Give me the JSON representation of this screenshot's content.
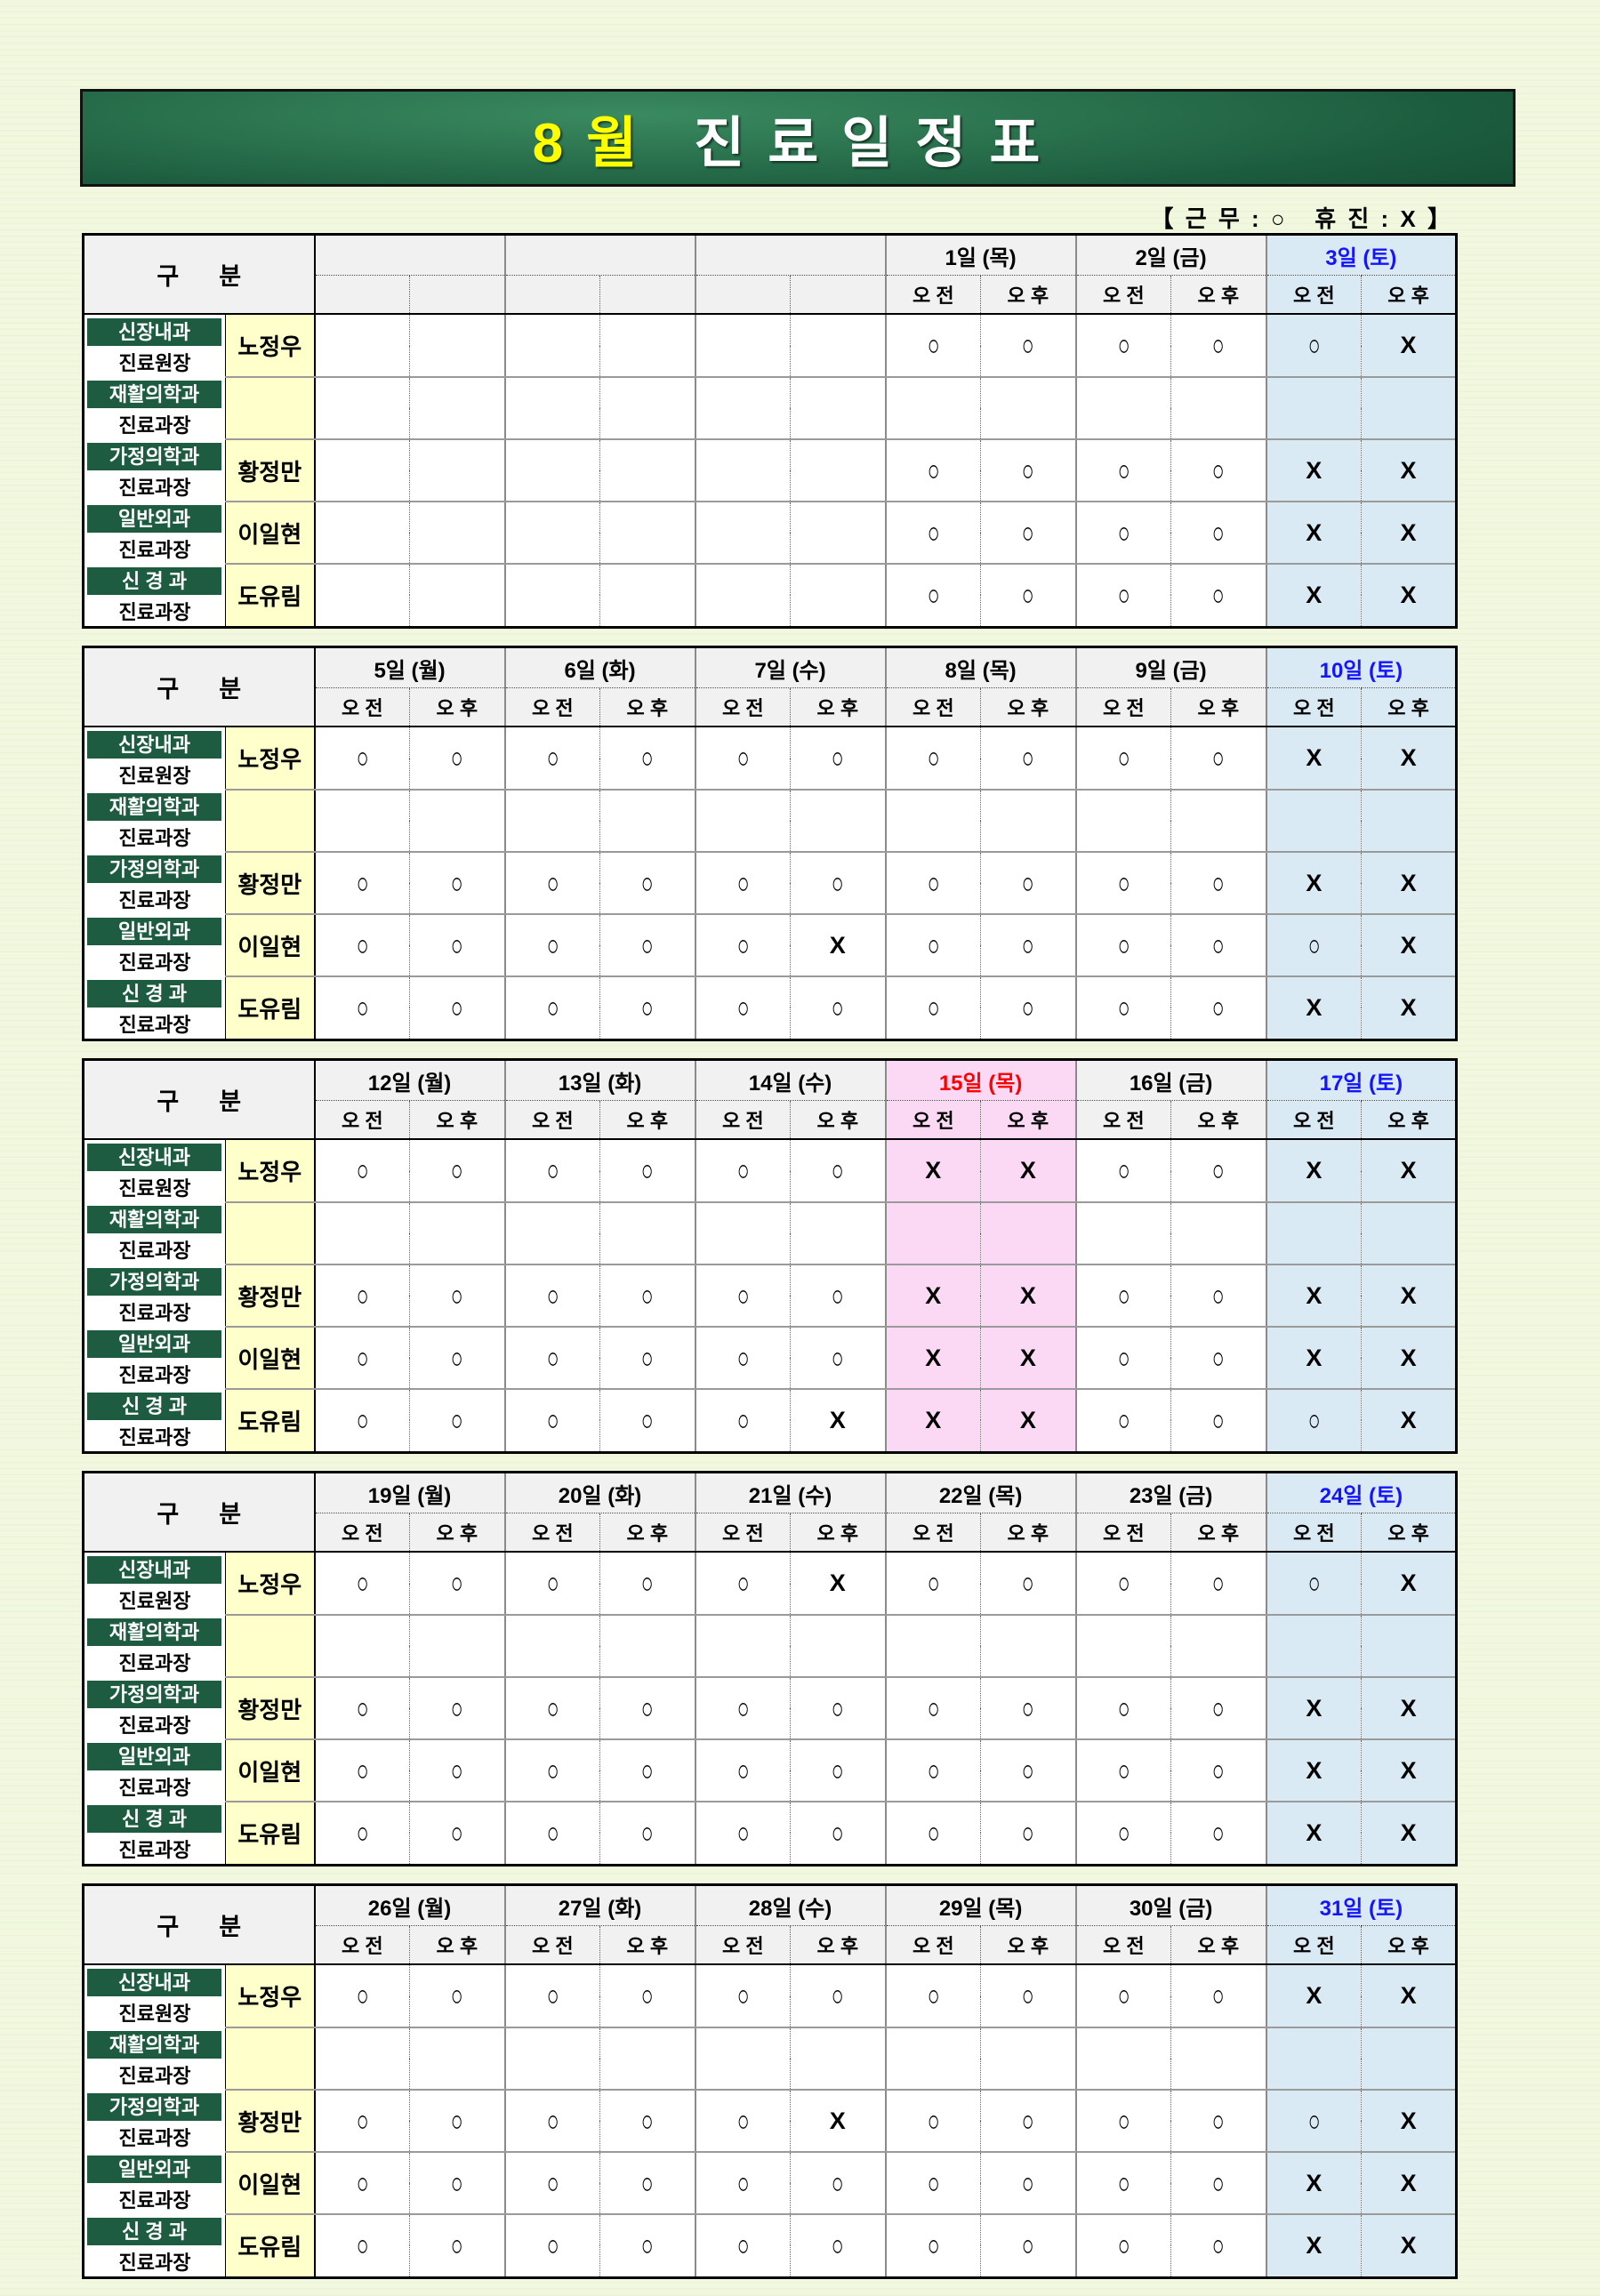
{
  "banner": {
    "month": "8월",
    "title": "진료일정표"
  },
  "legend": {
    "text": "【 근 무 : ○   휴 진 : X 】"
  },
  "labels": {
    "corner": "구      분",
    "am": "오 전",
    "pm": "오 후"
  },
  "colors": {
    "banner_green_dark": "#0a3323",
    "banner_green_light": "#3a8a60",
    "banner_month_yellow": "#ffff00",
    "dept_green": "#1d5c40",
    "name_yellow": "#ffffcc",
    "header_gray": "#f1f1f1",
    "saturday_bg": "#d9eaf4",
    "saturday_text": "#1414ff",
    "holiday_bg": "#fbd9f4",
    "holiday_text": "#ff0000",
    "mark_work": "○",
    "mark_off": "X"
  },
  "doctors": [
    {
      "dept": "신장내과",
      "title": "진료원장",
      "name": "노정우"
    },
    {
      "dept": "재활의학과",
      "title": "진료과장",
      "name": ""
    },
    {
      "dept": "가정의학과",
      "title": "진료과장",
      "name": "황정만"
    },
    {
      "dept": "일반외과",
      "title": "진료과장",
      "name": "이일현"
    },
    {
      "dept": "신 경 과",
      "title": "진료과장",
      "name": "도유림"
    }
  ],
  "weeks": [
    {
      "days": [
        {
          "label": "",
          "type": "blank"
        },
        {
          "label": "",
          "type": "blank"
        },
        {
          "label": "",
          "type": "blank"
        },
        {
          "label": "1일 (목)",
          "type": "normal"
        },
        {
          "label": "2일 (금)",
          "type": "normal"
        },
        {
          "label": "3일 (토)",
          "type": "saturday"
        }
      ],
      "marks": [
        [
          "",
          "",
          "",
          "",
          "",
          "",
          "○",
          "○",
          "○",
          "○",
          "○",
          "X"
        ],
        [
          "",
          "",
          "",
          "",
          "",
          "",
          "",
          "",
          "",
          "",
          "",
          ""
        ],
        [
          "",
          "",
          "",
          "",
          "",
          "",
          "○",
          "○",
          "○",
          "○",
          "X",
          "X"
        ],
        [
          "",
          "",
          "",
          "",
          "",
          "",
          "○",
          "○",
          "○",
          "○",
          "X",
          "X"
        ],
        [
          "",
          "",
          "",
          "",
          "",
          "",
          "○",
          "○",
          "○",
          "○",
          "X",
          "X"
        ]
      ]
    },
    {
      "days": [
        {
          "label": "5일 (월)",
          "type": "normal"
        },
        {
          "label": "6일 (화)",
          "type": "normal"
        },
        {
          "label": "7일 (수)",
          "type": "normal"
        },
        {
          "label": "8일 (목)",
          "type": "normal"
        },
        {
          "label": "9일 (금)",
          "type": "normal"
        },
        {
          "label": "10일 (토)",
          "type": "saturday"
        }
      ],
      "marks": [
        [
          "○",
          "○",
          "○",
          "○",
          "○",
          "○",
          "○",
          "○",
          "○",
          "○",
          "X",
          "X"
        ],
        [
          "",
          "",
          "",
          "",
          "",
          "",
          "",
          "",
          "",
          "",
          "",
          ""
        ],
        [
          "○",
          "○",
          "○",
          "○",
          "○",
          "○",
          "○",
          "○",
          "○",
          "○",
          "X",
          "X"
        ],
        [
          "○",
          "○",
          "○",
          "○",
          "○",
          "X",
          "○",
          "○",
          "○",
          "○",
          "○",
          "X"
        ],
        [
          "○",
          "○",
          "○",
          "○",
          "○",
          "○",
          "○",
          "○",
          "○",
          "○",
          "X",
          "X"
        ]
      ]
    },
    {
      "days": [
        {
          "label": "12일 (월)",
          "type": "normal"
        },
        {
          "label": "13일 (화)",
          "type": "normal"
        },
        {
          "label": "14일 (수)",
          "type": "normal"
        },
        {
          "label": "15일 (목)",
          "type": "holiday"
        },
        {
          "label": "16일 (금)",
          "type": "normal"
        },
        {
          "label": "17일 (토)",
          "type": "saturday"
        }
      ],
      "marks": [
        [
          "○",
          "○",
          "○",
          "○",
          "○",
          "○",
          "X",
          "X",
          "○",
          "○",
          "X",
          "X"
        ],
        [
          "",
          "",
          "",
          "",
          "",
          "",
          "",
          "",
          "",
          "",
          "",
          ""
        ],
        [
          "○",
          "○",
          "○",
          "○",
          "○",
          "○",
          "X",
          "X",
          "○",
          "○",
          "X",
          "X"
        ],
        [
          "○",
          "○",
          "○",
          "○",
          "○",
          "○",
          "X",
          "X",
          "○",
          "○",
          "X",
          "X"
        ],
        [
          "○",
          "○",
          "○",
          "○",
          "○",
          "X",
          "X",
          "X",
          "○",
          "○",
          "○",
          "X"
        ]
      ]
    },
    {
      "days": [
        {
          "label": "19일 (월)",
          "type": "normal"
        },
        {
          "label": "20일 (화)",
          "type": "normal"
        },
        {
          "label": "21일 (수)",
          "type": "normal"
        },
        {
          "label": "22일 (목)",
          "type": "normal"
        },
        {
          "label": "23일 (금)",
          "type": "normal"
        },
        {
          "label": "24일 (토)",
          "type": "saturday"
        }
      ],
      "marks": [
        [
          "○",
          "○",
          "○",
          "○",
          "○",
          "X",
          "○",
          "○",
          "○",
          "○",
          "○",
          "X"
        ],
        [
          "",
          "",
          "",
          "",
          "",
          "",
          "",
          "",
          "",
          "",
          "",
          ""
        ],
        [
          "○",
          "○",
          "○",
          "○",
          "○",
          "○",
          "○",
          "○",
          "○",
          "○",
          "X",
          "X"
        ],
        [
          "○",
          "○",
          "○",
          "○",
          "○",
          "○",
          "○",
          "○",
          "○",
          "○",
          "X",
          "X"
        ],
        [
          "○",
          "○",
          "○",
          "○",
          "○",
          "○",
          "○",
          "○",
          "○",
          "○",
          "X",
          "X"
        ]
      ]
    },
    {
      "days": [
        {
          "label": "26일 (월)",
          "type": "normal"
        },
        {
          "label": "27일 (화)",
          "type": "normal"
        },
        {
          "label": "28일 (수)",
          "type": "normal"
        },
        {
          "label": "29일 (목)",
          "type": "normal"
        },
        {
          "label": "30일 (금)",
          "type": "normal"
        },
        {
          "label": "31일 (토)",
          "type": "saturday"
        }
      ],
      "marks": [
        [
          "○",
          "○",
          "○",
          "○",
          "○",
          "○",
          "○",
          "○",
          "○",
          "○",
          "X",
          "X"
        ],
        [
          "",
          "",
          "",
          "",
          "",
          "",
          "",
          "",
          "",
          "",
          "",
          ""
        ],
        [
          "○",
          "○",
          "○",
          "○",
          "○",
          "X",
          "○",
          "○",
          "○",
          "○",
          "○",
          "X"
        ],
        [
          "○",
          "○",
          "○",
          "○",
          "○",
          "○",
          "○",
          "○",
          "○",
          "○",
          "X",
          "X"
        ],
        [
          "○",
          "○",
          "○",
          "○",
          "○",
          "○",
          "○",
          "○",
          "○",
          "○",
          "X",
          "X"
        ]
      ]
    }
  ]
}
